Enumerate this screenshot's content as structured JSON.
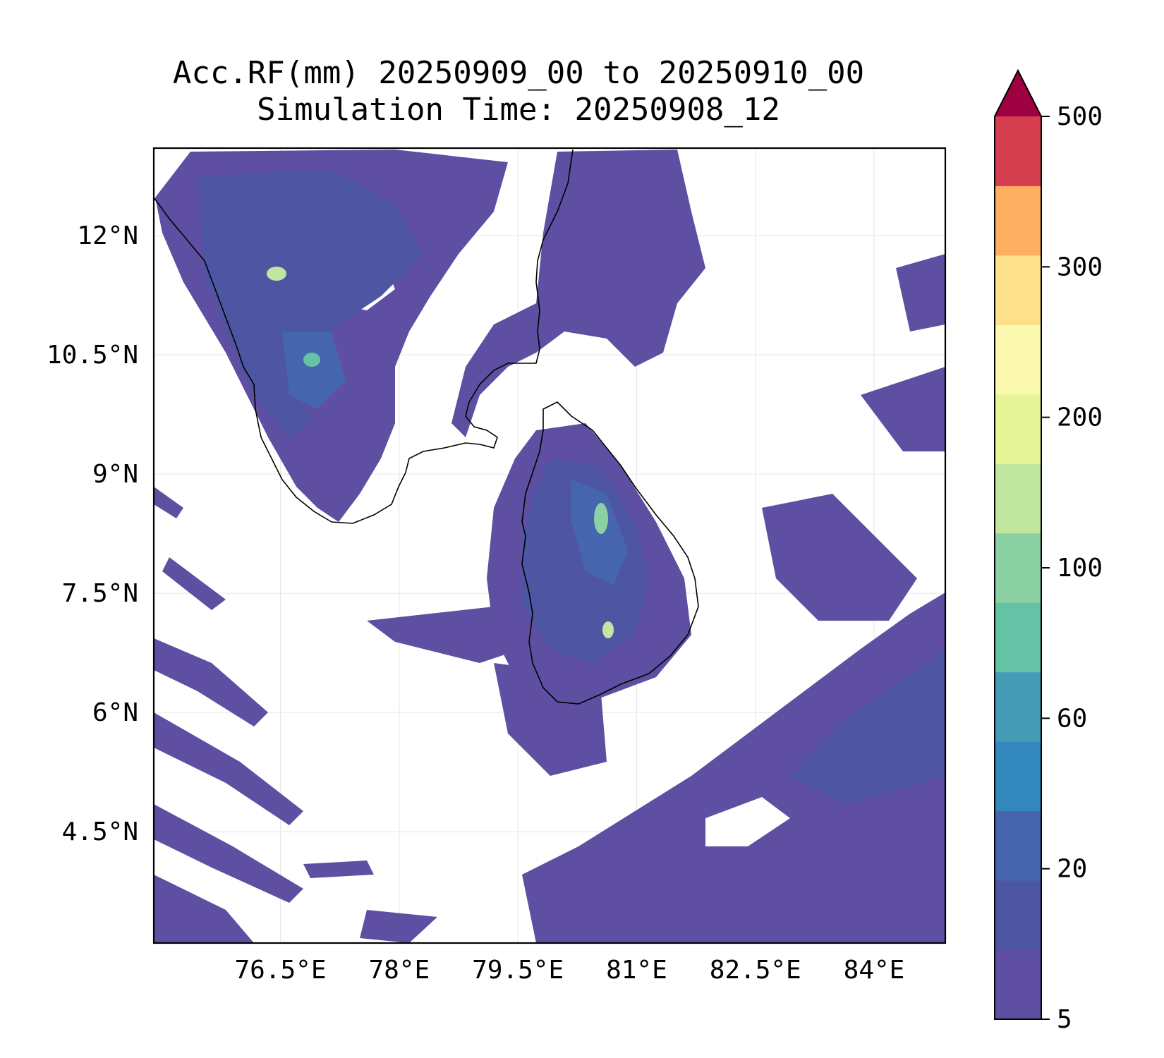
{
  "title": {
    "line1": "Acc.RF(mm) 20250909_00 to 20250910_00",
    "line2": "Simulation Time: 20250908_12"
  },
  "map": {
    "lon_range": [
      74.9,
      84.9
    ],
    "lat_range": [
      3.1,
      13.1
    ],
    "lon_ticks": [
      {
        "value": 76.5,
        "label": "76.5°E"
      },
      {
        "value": 78,
        "label": "78°E"
      },
      {
        "value": 79.5,
        "label": "79.5°E"
      },
      {
        "value": 81,
        "label": "81°E"
      },
      {
        "value": 82.5,
        "label": "82.5°E"
      },
      {
        "value": 84,
        "label": "84°E"
      }
    ],
    "lat_ticks": [
      {
        "value": 12,
        "label": "12°N"
      },
      {
        "value": 10.5,
        "label": "10.5°N"
      },
      {
        "value": 9,
        "label": "9°N"
      },
      {
        "value": 7.5,
        "label": "7.5°N"
      },
      {
        "value": 6,
        "label": "6°N"
      },
      {
        "value": 4.5,
        "label": "4.5°N"
      }
    ],
    "grid": true,
    "coastline_color": "#000000"
  },
  "colorbar": {
    "levels": [
      "5",
      "20",
      "60",
      "100",
      "200",
      "300",
      "500"
    ],
    "colors": [
      "#5e4fa2",
      "#4e55a3",
      "#4566ae",
      "#3288bd",
      "#439bb5",
      "#66c2a5",
      "#8cd1a4",
      "#c0e6a0",
      "#e6f598",
      "#fbf8b0",
      "#fee08b",
      "#fdae61",
      "#d53e4f"
    ],
    "extend_color": "#9e0142"
  }
}
